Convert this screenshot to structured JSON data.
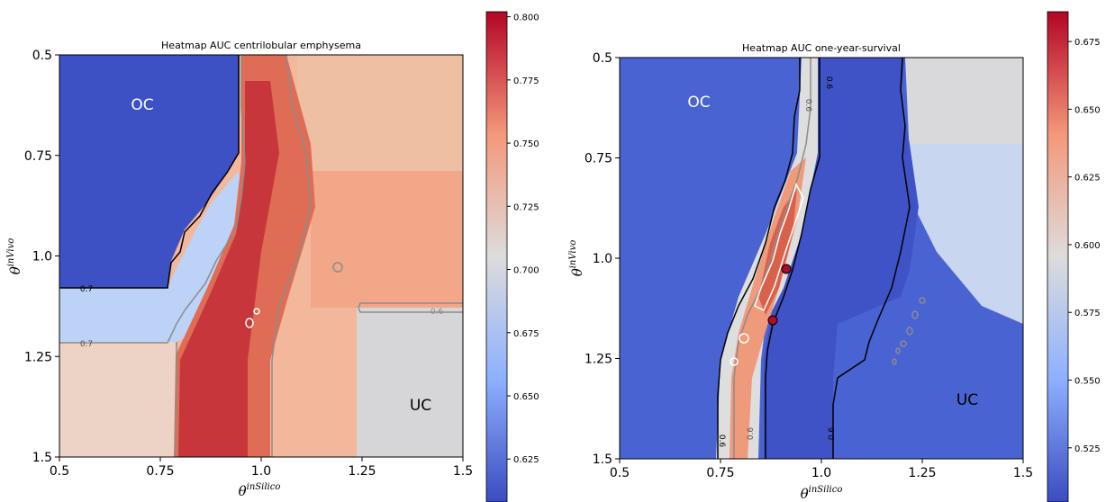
{
  "colors": {
    "cmap_low": "#3b4cc0",
    "cmap_mid": "#dddcdc",
    "cmap_high": "#b40426",
    "contour_black": "#000000",
    "contour_gray": "#8c8c8c",
    "contour_white": "#ffffff"
  },
  "chart_data": [
    {
      "type": "heatmap",
      "title": "Heatmap AUC centrilobular emphysema",
      "xlabel": "θ^inSilico",
      "ylabel": "θ^inVivo",
      "xlim": [
        0.5,
        1.5
      ],
      "ylim": [
        1.5,
        0.5
      ],
      "xticks": [
        "0.5",
        "0.75",
        "1.0",
        "1.25",
        "1.5"
      ],
      "yticks": [
        "0.5",
        "0.75",
        "1.0",
        "1.25",
        "1.5"
      ],
      "colorbar": {
        "min": 0.608,
        "max": 0.802,
        "ticks": [
          "0.625",
          "0.650",
          "0.675",
          "0.700",
          "0.725",
          "0.750",
          "0.775",
          "0.800"
        ]
      },
      "contour_levels": [
        "0.7",
        "0.7",
        "0.6",
        "0.6",
        "0.6"
      ],
      "annotations": [
        "OC",
        "UC"
      ],
      "regions": [
        {
          "label": "OC (over-confident, top-left)",
          "value": 0.61
        },
        {
          "label": "diagonal band",
          "value": 0.79
        },
        {
          "label": "right of band",
          "value": 0.735
        },
        {
          "label": "UC (bottom-right)",
          "value": 0.7
        },
        {
          "label": "bottom-left strip",
          "value": 0.72
        }
      ]
    },
    {
      "type": "heatmap",
      "title": "Heatmap AUC one-year-survival",
      "xlabel": "θ^inSilico",
      "ylabel": "θ^inVivo",
      "xlim": [
        0.5,
        1.5
      ],
      "ylim": [
        1.5,
        0.5
      ],
      "xticks": [
        "0.5",
        "0.75",
        "1.0",
        "1.25",
        "1.5"
      ],
      "yticks": [
        "0.5",
        "0.75",
        "1.0",
        "1.25",
        "1.5"
      ],
      "colorbar": {
        "min": 0.505,
        "max": 0.686,
        "ticks": [
          "0.525",
          "0.550",
          "0.575",
          "0.600",
          "0.625",
          "0.650",
          "0.675"
        ]
      },
      "contour_levels": [
        "0.6",
        "0.6",
        "0.6",
        "0.6",
        "0.6",
        "0.6"
      ],
      "annotations": [
        "OC",
        "UC"
      ],
      "regions": [
        {
          "label": "OC (left)",
          "value": 0.52
        },
        {
          "label": "diagonal band",
          "value": 0.64
        },
        {
          "label": "middle blue strip",
          "value": 0.52
        },
        {
          "label": "UC (right)",
          "value": 0.6
        }
      ]
    }
  ]
}
